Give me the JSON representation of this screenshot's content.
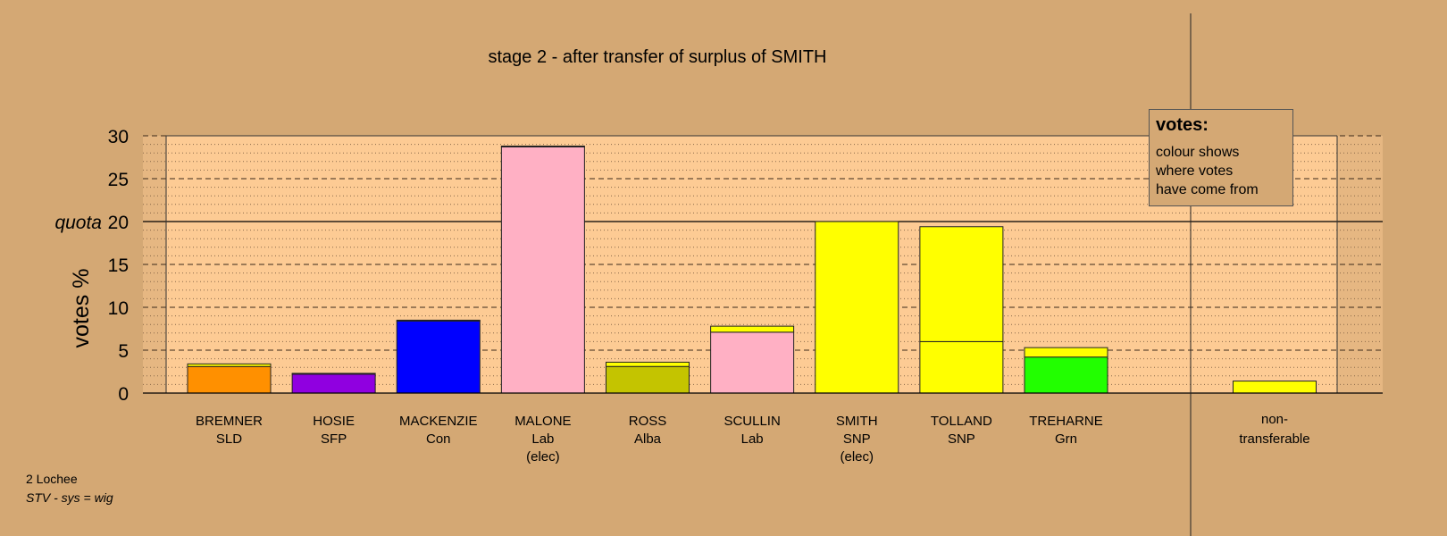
{
  "chart_data": {
    "type": "bar",
    "title": "stage 2 - after transfer of surplus of SMITH",
    "ylabel": "votes %",
    "quota_label": "quota",
    "quota": 20,
    "ylim": [
      0,
      30
    ],
    "yticks": [
      0,
      5,
      10,
      15,
      20,
      25,
      30
    ],
    "grid": true,
    "colors": {
      "background": "#d4a874",
      "plot": "#fdcb94",
      "SLD": "#ff9000",
      "SFP": "#9000e0",
      "Con": "#0000ff",
      "Lab": "#ffb0c4",
      "Alba": "#c4c400",
      "SNP": "#ffff00",
      "Grn": "#22ff00"
    },
    "candidates": [
      {
        "name": "BREMNER",
        "party": "SLD",
        "note": "",
        "total": 3.4,
        "segments": [
          {
            "from": "SLD",
            "value": 3.1
          },
          {
            "from": "SNP",
            "value": 0.3
          }
        ]
      },
      {
        "name": "HOSIE",
        "party": "SFP",
        "note": "",
        "total": 2.3,
        "segments": [
          {
            "from": "SFP",
            "value": 2.2
          },
          {
            "from": "SNP",
            "value": 0.1
          }
        ]
      },
      {
        "name": "MACKENZIE",
        "party": "Con",
        "note": "",
        "total": 8.5,
        "segments": [
          {
            "from": "Con",
            "value": 8.4
          },
          {
            "from": "SNP",
            "value": 0.1
          }
        ]
      },
      {
        "name": "MALONE",
        "party": "Lab",
        "note": "(elec)",
        "total": 28.8,
        "segments": [
          {
            "from": "Lab",
            "value": 28.7
          },
          {
            "from": "SNP",
            "value": 0.1
          }
        ]
      },
      {
        "name": "ROSS",
        "party": "Alba",
        "note": "",
        "total": 3.6,
        "segments": [
          {
            "from": "Alba",
            "value": 3.1
          },
          {
            "from": "SNP",
            "value": 0.5
          }
        ]
      },
      {
        "name": "SCULLIN",
        "party": "Lab",
        "note": "",
        "total": 7.8,
        "segments": [
          {
            "from": "Lab",
            "value": 7.1
          },
          {
            "from": "SNP",
            "value": 0.7
          }
        ]
      },
      {
        "name": "SMITH",
        "party": "SNP",
        "note": "(elec)",
        "total": 20.0,
        "segments": [
          {
            "from": "SNP",
            "value": 20.0
          }
        ]
      },
      {
        "name": "TOLLAND",
        "party": "SNP",
        "note": "",
        "total": 19.4,
        "segments": [
          {
            "from": "SNP",
            "value": 6.0
          },
          {
            "from": "SNP",
            "value": 13.4
          }
        ]
      },
      {
        "name": "TREHARNE",
        "party": "Grn",
        "note": "",
        "total": 5.3,
        "segments": [
          {
            "from": "Grn",
            "value": 4.2
          },
          {
            "from": "SNP",
            "value": 1.1
          }
        ]
      }
    ],
    "nontransferable": {
      "label_line1": "non-",
      "label_line2": "transferable",
      "total": 1.4,
      "segments": [
        {
          "from": "SNP",
          "value": 1.4
        }
      ]
    }
  },
  "legend": {
    "title": "votes:",
    "lines": [
      "colour shows",
      "where votes",
      "have come from"
    ]
  },
  "footer": {
    "ward": "2 Lochee",
    "system": "STV - sys = wig"
  }
}
